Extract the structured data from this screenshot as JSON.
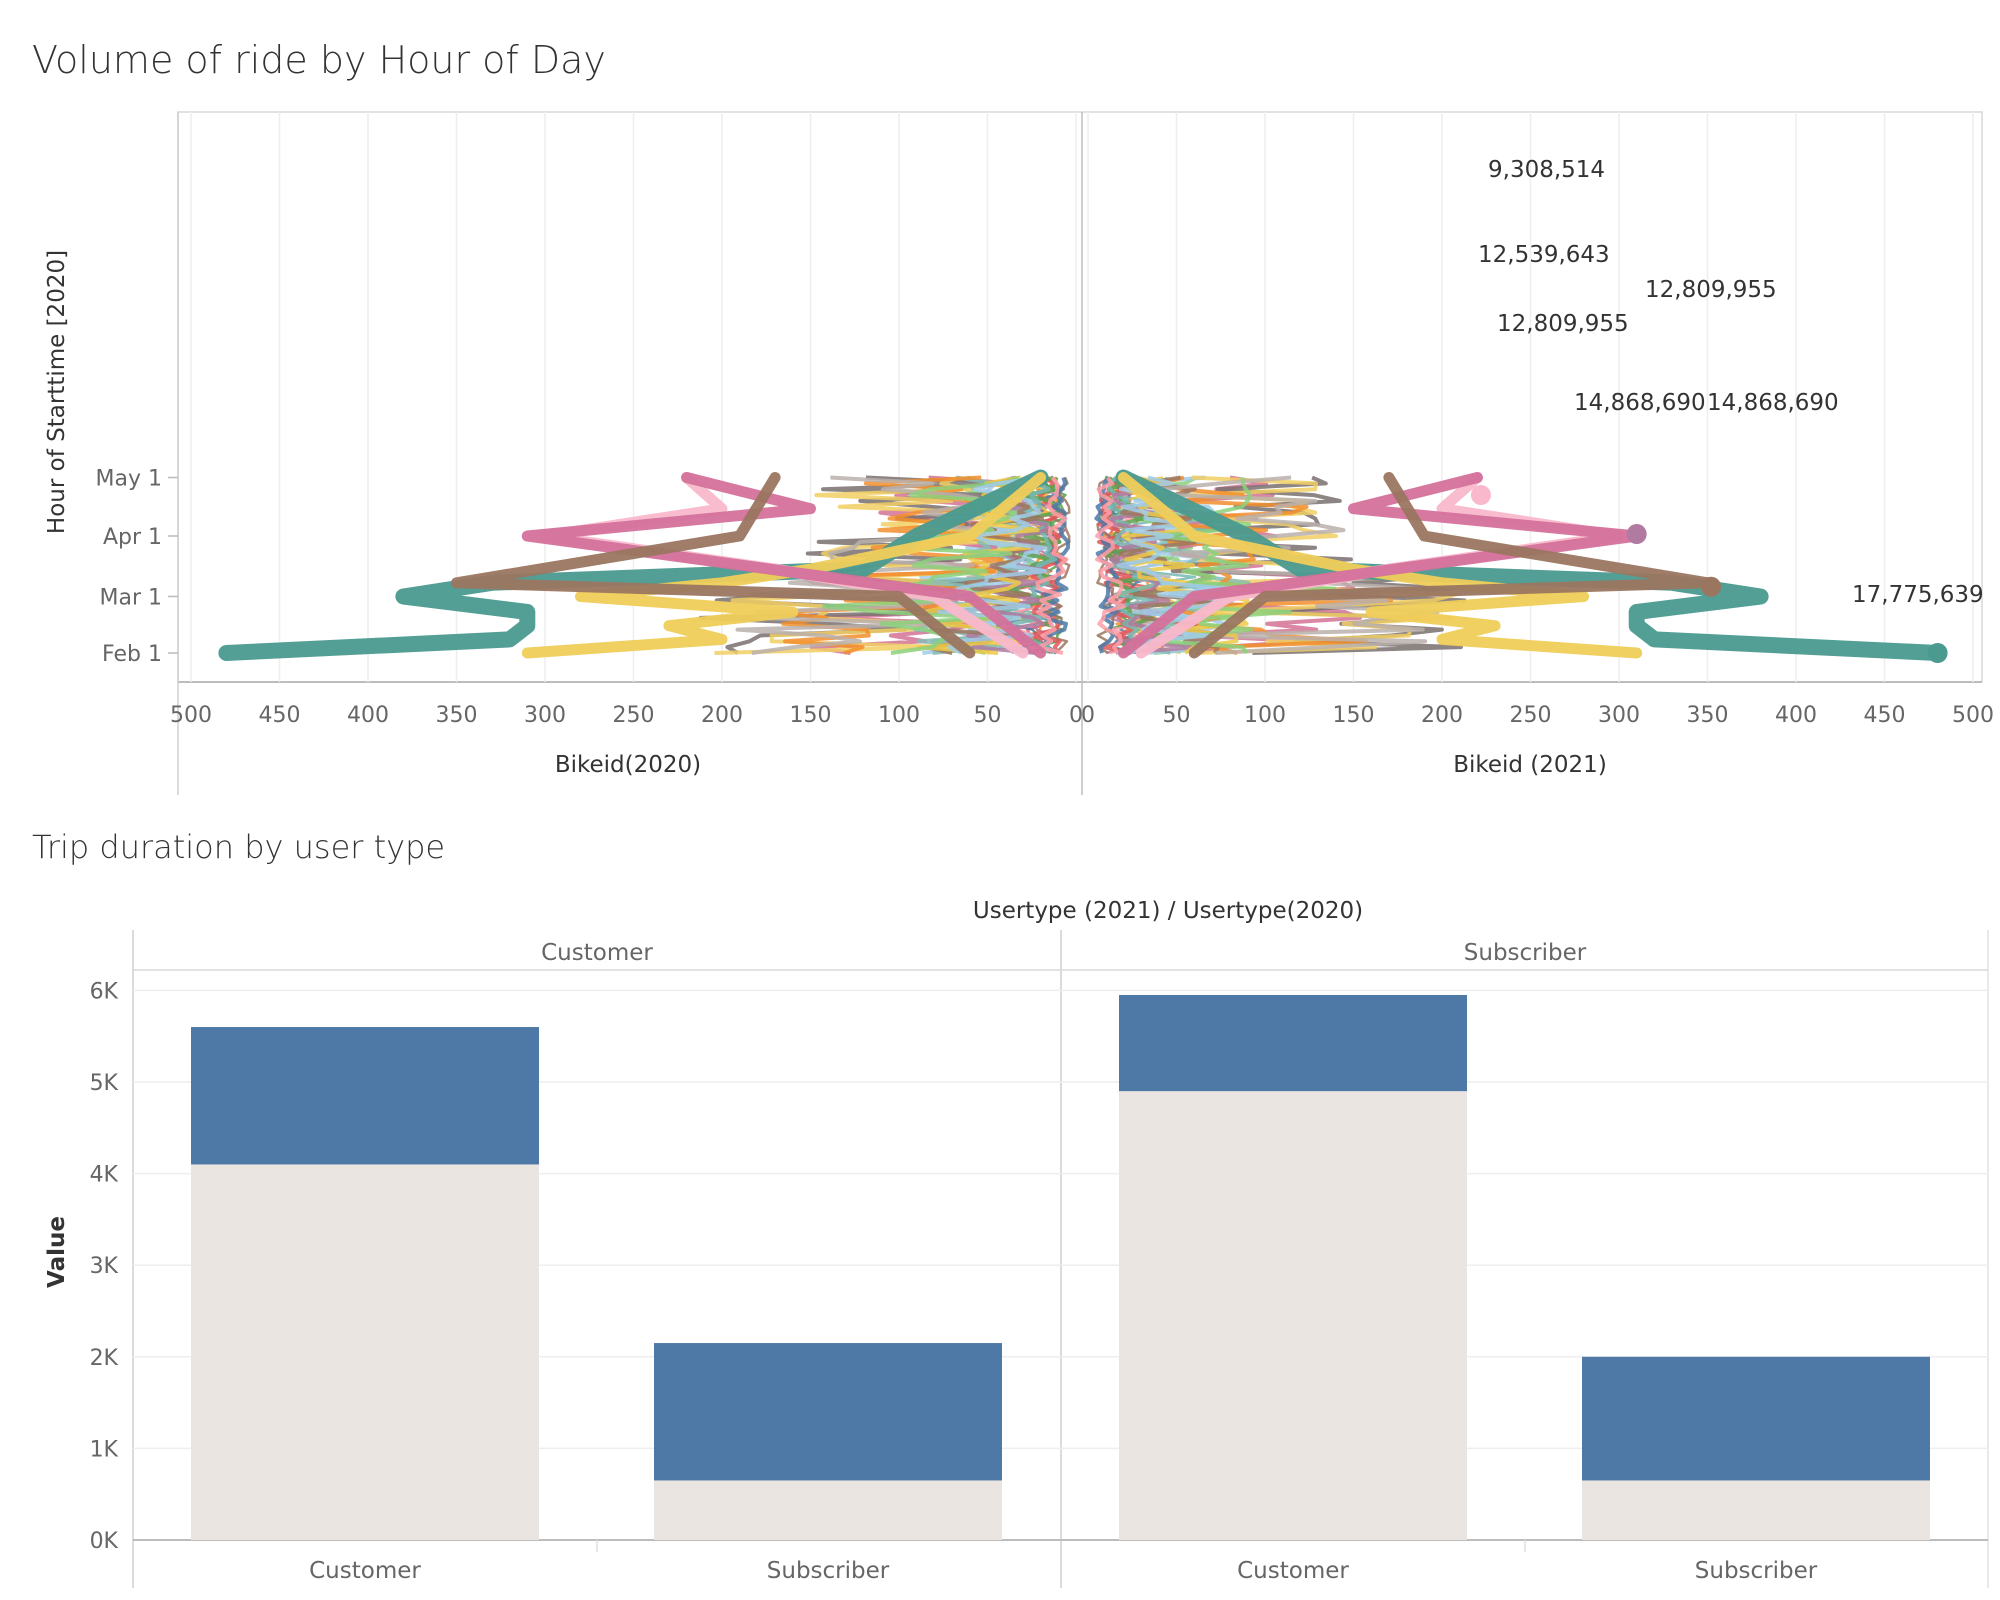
{
  "chart_data": [
    {
      "type": "line",
      "title": "Volume of ride by Hour of Day",
      "ylabel": "Hour of Starttime [2020]",
      "yticks": [
        "May 1",
        "Apr 1",
        "Mar 1",
        "Feb 1"
      ],
      "left_axis": {
        "label": "Bikeid(2020)",
        "ticks": [
          "500",
          "450",
          "400",
          "350",
          "300",
          "250",
          "200",
          "150",
          "100",
          "50",
          "0"
        ],
        "xlim": [
          0,
          500
        ],
        "direction": "reversed"
      },
      "right_axis": {
        "label": "Bikeid (2021)",
        "ticks": [
          "0",
          "50",
          "100",
          "150",
          "200",
          "250",
          "300",
          "350",
          "400",
          "450",
          "500"
        ],
        "xlim": [
          0,
          500
        ]
      },
      "highlighted_series": [
        {
          "color": "#4a9a8f",
          "points": [
            {
              "y": "Feb 1",
              "x": 480
            },
            {
              "y": "Feb 8",
              "x": 320
            },
            {
              "y": "Feb 15",
              "x": 310
            },
            {
              "y": "Feb 22",
              "x": 310
            },
            {
              "y": "Mar 1",
              "x": 380
            },
            {
              "y": "Mar 8",
              "x": 330
            },
            {
              "y": "Mar 15",
              "x": 120
            },
            {
              "y": "Apr 1",
              "x": 90
            },
            {
              "y": "May 1",
              "x": 20
            }
          ]
        },
        {
          "color": "#f0cd5a",
          "points": [
            {
              "y": "Feb 1",
              "x": 310
            },
            {
              "y": "Feb 8",
              "x": 200
            },
            {
              "y": "Feb 15",
              "x": 230
            },
            {
              "y": "Feb 22",
              "x": 160
            },
            {
              "y": "Mar 1",
              "x": 280
            },
            {
              "y": "Mar 8",
              "x": 200
            },
            {
              "y": "Mar 15",
              "x": 150
            },
            {
              "y": "Apr 1",
              "x": 60
            },
            {
              "y": "May 1",
              "x": 20
            }
          ]
        },
        {
          "color": "#f9b8cb",
          "points": [
            {
              "y": "Feb 1",
              "x": 30
            },
            {
              "y": "Mar 1",
              "x": 80
            },
            {
              "y": "Mar 15",
              "x": 170
            },
            {
              "y": "Apr 1",
              "x": 300
            },
            {
              "y": "Apr 15",
              "x": 200
            },
            {
              "y": "May 1",
              "x": 220
            }
          ]
        },
        {
          "color": "#d4719b",
          "points": [
            {
              "y": "Feb 1",
              "x": 20
            },
            {
              "y": "Mar 1",
              "x": 60
            },
            {
              "y": "Apr 1",
              "x": 310
            },
            {
              "y": "Apr 15",
              "x": 150
            },
            {
              "y": "May 1",
              "x": 220
            }
          ]
        },
        {
          "color": "#9a7660",
          "points": [
            {
              "y": "Feb 1",
              "x": 60
            },
            {
              "y": "Mar 1",
              "x": 100
            },
            {
              "y": "Mar 8",
              "x": 350
            },
            {
              "y": "Apr 1",
              "x": 190
            },
            {
              "y": "May 1",
              "x": 170
            }
          ]
        }
      ],
      "annotations": [
        "9,308,514",
        "12,539,643",
        "12,809,955",
        "12,809,955",
        "14,868,690",
        "14,868,690",
        "17,775,639"
      ]
    },
    {
      "type": "bar",
      "title": "Trip duration by user type",
      "column_header": "Usertype (2021)  /  Usertype(2020)",
      "panels": [
        "Customer",
        "Subscriber"
      ],
      "categories": [
        "Customer",
        "Subscriber"
      ],
      "ylabel": "Value",
      "ylim": [
        0,
        6200
      ],
      "yticks": [
        "0K",
        "1K",
        "2K",
        "3K",
        "4K",
        "5K",
        "6K"
      ],
      "series": [
        {
          "color": "#ebe5e1",
          "values": [
            [
              4100,
              650
            ],
            [
              4900,
              650
            ]
          ]
        },
        {
          "color": "#4e79a7",
          "values": [
            [
              1500,
              1500
            ],
            [
              1050,
              1350
            ]
          ]
        }
      ]
    }
  ]
}
